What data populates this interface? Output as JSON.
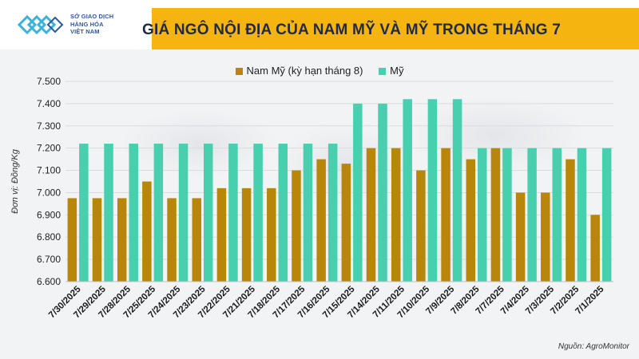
{
  "header": {
    "logo_lines": [
      "SỞ GIAO DỊCH",
      "HÀNG HÓA",
      "VIỆT NAM"
    ],
    "title": "GIÁ NGÔ NỘI ĐỊA CỦA NAM MỸ VÀ MỸ TRONG THÁNG 7"
  },
  "source": "Nguồn: AgroMonitor",
  "colors": {
    "brand_yellow": "#f5b410",
    "series_south_america": "#b8860b",
    "series_us": "#48cfad"
  },
  "chart_data": {
    "type": "bar",
    "title": "GIÁ NGÔ NỘI ĐỊA CỦA NAM MỸ VÀ MỸ TRONG THÁNG 7",
    "ylabel": "Đơn vị: Đồng/Kg",
    "xlabel": "",
    "ylim": [
      6600,
      7500
    ],
    "yticks": [
      "6.600",
      "6.700",
      "6.800",
      "6.900",
      "7.000",
      "7.100",
      "7.200",
      "7.300",
      "7.400",
      "7.500"
    ],
    "legend_position": "top-center",
    "grid": true,
    "categories": [
      "7/30/2025",
      "7/29/2025",
      "7/28/2025",
      "7/25/2025",
      "7/24/2025",
      "7/23/2025",
      "7/22/2025",
      "7/21/2025",
      "7/18/2025",
      "7/17/2025",
      "7/16/2025",
      "7/15/2025",
      "7/14/2025",
      "7/11/2025",
      "7/10/2025",
      "7/9/2025",
      "7/8/2025",
      "7/7/2025",
      "7/4/2025",
      "7/3/2025",
      "7/2/2025",
      "7/1/2025"
    ],
    "series": [
      {
        "name": "Nam Mỹ (kỳ hạn tháng 8)",
        "color": "#b8860b",
        "values": [
          6975,
          6975,
          6975,
          7050,
          6975,
          6975,
          7020,
          7020,
          7020,
          7100,
          7150,
          7130,
          7200,
          7200,
          7100,
          7200,
          7150,
          7200,
          7000,
          7000,
          7150,
          6900
        ]
      },
      {
        "name": "Mỹ",
        "color": "#48cfad",
        "values": [
          7220,
          7220,
          7220,
          7220,
          7220,
          7220,
          7220,
          7220,
          7220,
          7220,
          7220,
          7400,
          7400,
          7420,
          7420,
          7420,
          7200,
          7200,
          7200,
          7200,
          7200,
          7200
        ]
      }
    ]
  }
}
